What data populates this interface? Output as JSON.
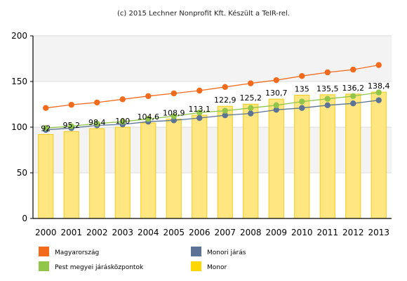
{
  "credit": "(c) 2015 Lechner Nonprofit Kft. Készült a TeIR-rel.",
  "chart_data": {
    "type": "bar",
    "title": "",
    "xlabel": "",
    "ylabel": "",
    "ylim": [
      0,
      200
    ],
    "yticks": [
      0,
      50,
      100,
      150,
      200
    ],
    "grid": true,
    "legend_position": "bottom",
    "categories": [
      "2000",
      "2001",
      "2002",
      "2003",
      "2004",
      "2005",
      "2006",
      "2007",
      "2008",
      "2009",
      "2010",
      "2011",
      "2012",
      "2013"
    ],
    "bar_series": {
      "name": "Monor",
      "color": "#ffe680",
      "edge_color": "#f2cc1a",
      "values": [
        92,
        95.2,
        98.4,
        100,
        104.6,
        108.9,
        113.1,
        122.9,
        125.2,
        130.7,
        135,
        135.5,
        136.2,
        138.4
      ],
      "labels": [
        "92",
        "95,2",
        "98,4",
        "100",
        "104,6",
        "108,9",
        "113,1",
        "122,9",
        "125,2",
        "130,7",
        "135",
        "135,5",
        "136,2",
        "138,4"
      ]
    },
    "line_series": [
      {
        "name": "Magyarország",
        "color": "#f26b1d",
        "values": [
          121,
          124.5,
          127,
          130.5,
          134,
          137,
          140,
          144,
          148,
          151.5,
          156,
          160,
          163,
          168
        ]
      },
      {
        "name": "Monori járás",
        "color": "#5b7394",
        "values": [
          97,
          99,
          102,
          103,
          106,
          107.5,
          110,
          113,
          115,
          119,
          121,
          124,
          126,
          129.5
        ]
      },
      {
        "name": "Pest megyei járásközpontok",
        "color": "#92c64a",
        "values": [
          99,
          101,
          104,
          106,
          109,
          112,
          116,
          118,
          121,
          124,
          128,
          131,
          134,
          138
        ]
      }
    ],
    "legend": [
      {
        "name": "Magyarország",
        "color": "#f26b1d"
      },
      {
        "name": "Monori járás",
        "color": "#5b7394"
      },
      {
        "name": "Pest megyei járásközpontok",
        "color": "#92c64a"
      },
      {
        "name": "Monor",
        "color": "#ffd700"
      }
    ]
  }
}
